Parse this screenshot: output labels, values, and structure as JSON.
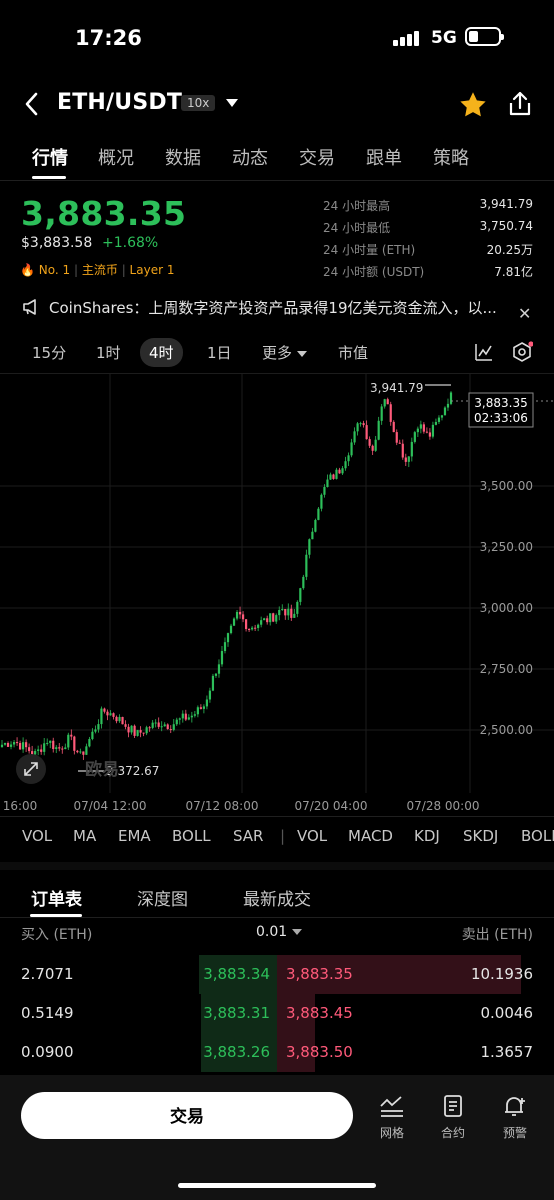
{
  "status_bar": {
    "time": "17:26",
    "network": "5G"
  },
  "header": {
    "pair": "ETH/USDT",
    "leverage": "10x"
  },
  "tabs": [
    "行情",
    "概况",
    "数据",
    "动态",
    "交易",
    "跟单",
    "策略"
  ],
  "ticker": {
    "price": "3,883.35",
    "usd_price": "$3,883.58",
    "change": "+1.68%",
    "rank": "No. 1",
    "category": "主流币",
    "layer": "Layer 1",
    "stats": [
      {
        "label": "24 小时最高",
        "value": "3,941.79"
      },
      {
        "label": "24 小时最低",
        "value": "3,750.74"
      },
      {
        "label": "24 小时量 (ETH)",
        "value": "20.25万"
      },
      {
        "label": "24 小时额 (USDT)",
        "value": "7.81亿"
      }
    ]
  },
  "news": {
    "text": "CoinShares：上周数字资产投资产品录得19亿美元资金流入，以..."
  },
  "intervals": {
    "items": [
      "15分",
      "1时",
      "4时",
      "1日",
      "更多",
      "市值"
    ],
    "active": "4时"
  },
  "chart_data": {
    "type": "candlestick",
    "y_ticks": [
      "3,500.00",
      "3,250.00",
      "3,000.00",
      "2,750.00",
      "2,500.00"
    ],
    "y_tick_values": [
      3500,
      3250,
      3000,
      2750,
      2500
    ],
    "x_ticks": [
      "16:00",
      "07/04 12:00",
      "07/12 08:00",
      "07/20 04:00",
      "07/28 00:00"
    ],
    "high_label": "3,941.79",
    "low_label": "2,372.67",
    "last_price": "3,883.35",
    "countdown": "02:33:06",
    "watermark": "欧易",
    "close_path": [
      2440,
      2455,
      2430,
      2400,
      2460,
      2420,
      2465,
      2390,
      2480,
      2580,
      2560,
      2520,
      2480,
      2510,
      2530,
      2520,
      2545,
      2560,
      2600,
      2740,
      2860,
      2980,
      2920,
      2940,
      2960,
      3000,
      2950,
      3180,
      3400,
      3520,
      3560,
      3660,
      3780,
      3640,
      3880,
      3720,
      3600,
      3760,
      3700,
      3780,
      3883.35
    ],
    "up_color": "#2dbf5a",
    "down_color": "#ff5a7a"
  },
  "indicators": [
    "VOL",
    "MA",
    "EMA",
    "BOLL",
    "SAR",
    "|",
    "VOL",
    "MACD",
    "KDJ",
    "SKDJ",
    "BOLL"
  ],
  "orderbook": {
    "tabs": [
      "订单表",
      "深度图",
      "最新成交"
    ],
    "bid_header": "买入 (ETH)",
    "tick": "0.01",
    "ask_header": "卖出 (ETH)",
    "rows": [
      {
        "bid_qty": "2.7071",
        "bid_price": "3,883.34",
        "ask_price": "3,883.35",
        "ask_qty": "10.1936"
      },
      {
        "bid_qty": "0.5149",
        "bid_price": "3,883.31",
        "ask_price": "3,883.45",
        "ask_qty": "0.0046"
      },
      {
        "bid_qty": "0.0900",
        "bid_price": "3,883.26",
        "ask_price": "3,883.50",
        "ask_qty": "1.3657"
      }
    ]
  },
  "bottom": {
    "trade": "交易",
    "grid": "网格",
    "contract": "合约",
    "alert": "预警"
  }
}
